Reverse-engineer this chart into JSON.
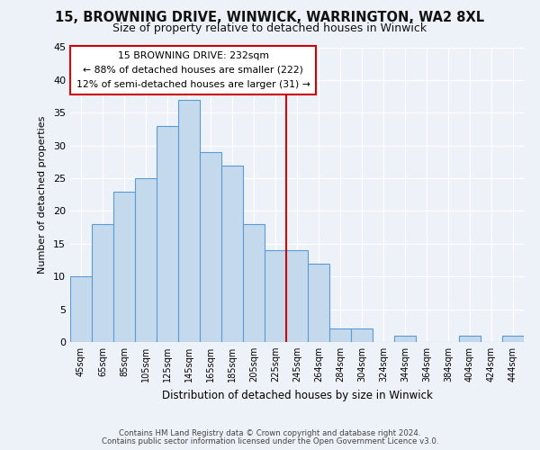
{
  "title": "15, BROWNING DRIVE, WINWICK, WARRINGTON, WA2 8XL",
  "subtitle": "Size of property relative to detached houses in Winwick",
  "xlabel": "Distribution of detached houses by size in Winwick",
  "ylabel": "Number of detached properties",
  "bar_labels": [
    "45sqm",
    "65sqm",
    "85sqm",
    "105sqm",
    "125sqm",
    "145sqm",
    "165sqm",
    "185sqm",
    "205sqm",
    "225sqm",
    "245sqm",
    "264sqm",
    "284sqm",
    "304sqm",
    "324sqm",
    "344sqm",
    "364sqm",
    "384sqm",
    "404sqm",
    "424sqm",
    "444sqm"
  ],
  "bar_values": [
    10,
    18,
    23,
    25,
    33,
    37,
    29,
    27,
    18,
    14,
    14,
    12,
    2,
    2,
    0,
    1,
    0,
    0,
    1,
    0,
    1
  ],
  "bar_color": "#c5d9ed",
  "bar_edge_color": "#5a9bd5",
  "vline_x_idx": 10,
  "vline_color": "#cc0000",
  "annotation_title": "15 BROWNING DRIVE: 232sqm",
  "annotation_line1": "← 88% of detached houses are smaller (222)",
  "annotation_line2": "12% of semi-detached houses are larger (31) →",
  "annotation_box_edge": "#cc0000",
  "annotation_box_face": "#ffffff",
  "ylim": [
    0,
    45
  ],
  "yticks": [
    0,
    5,
    10,
    15,
    20,
    25,
    30,
    35,
    40,
    45
  ],
  "bg_color": "#edf2f9",
  "footer1": "Contains HM Land Registry data © Crown copyright and database right 2024.",
  "footer2": "Contains public sector information licensed under the Open Government Licence v3.0.",
  "title_fontsize": 10.5,
  "subtitle_fontsize": 9,
  "fig_width": 6.0,
  "fig_height": 5.0
}
